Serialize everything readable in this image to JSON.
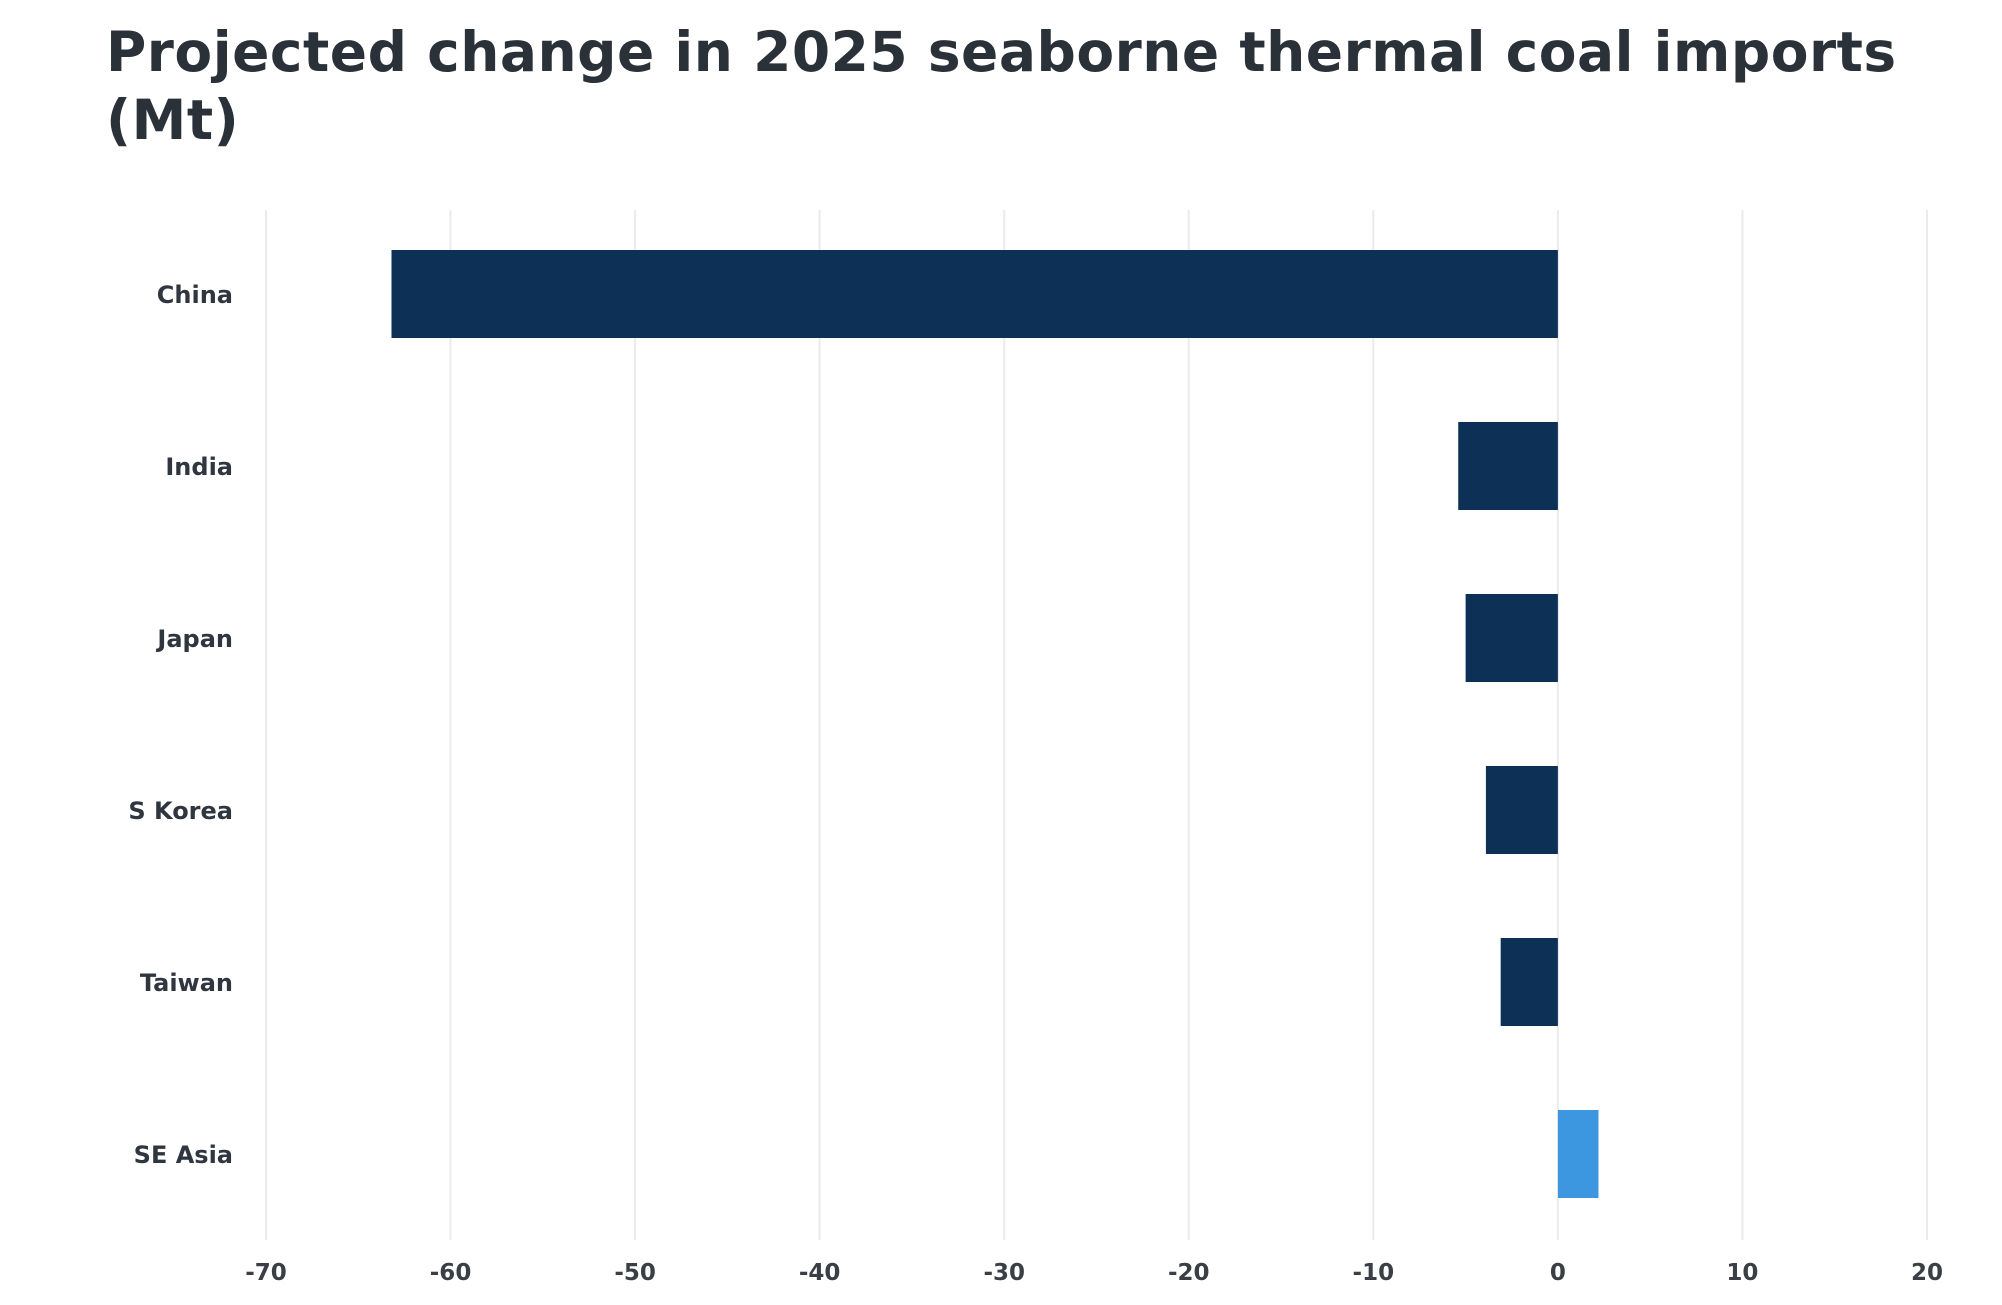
{
  "chart_data": {
    "type": "bar",
    "orientation": "horizontal",
    "title": "Projected change in 2025 seaborne thermal coal imports (Mt)",
    "categories": [
      "China",
      "India",
      "Japan",
      "S Korea",
      "Taiwan",
      "SE Asia"
    ],
    "values": [
      -63.2,
      -5.4,
      -5.0,
      -3.9,
      -3.1,
      2.2
    ],
    "bar_colors": [
      "#0d3057",
      "#0d3057",
      "#0d3057",
      "#0d3057",
      "#0d3057",
      "#3d97e0"
    ],
    "xlim": [
      -70,
      20
    ],
    "xticks": [
      -70,
      -60,
      -50,
      -40,
      -30,
      -20,
      -10,
      0,
      10,
      20
    ],
    "xlabel": "",
    "ylabel": "",
    "grid": "vertical",
    "legend": "none"
  }
}
